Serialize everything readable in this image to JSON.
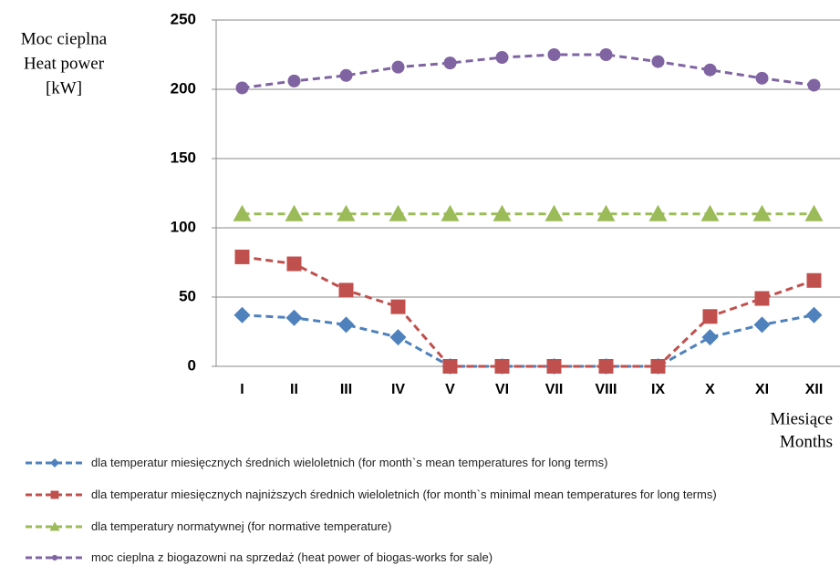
{
  "chart_data": {
    "type": "line",
    "y_label_lines": [
      "Moc cieplna",
      "Heat power",
      "[kW]"
    ],
    "x_label_lines": [
      "Miesiące",
      "Months"
    ],
    "categories": [
      "I",
      "II",
      "III",
      "IV",
      "V",
      "VI",
      "VII",
      "VIII",
      "IX",
      "X",
      "XI",
      "XII"
    ],
    "series": [
      {
        "name": "dla temperatur miesięcznych średnich wieloletnich (for month`s mean temperatures for long terms)",
        "color": "#4f81bd",
        "marker": "diamond",
        "values": [
          37,
          35,
          30,
          21,
          0,
          0,
          0,
          0,
          0,
          21,
          30,
          37
        ]
      },
      {
        "name": "dla temperatur miesięcznych najniższych średnich wieloletnich (for month`s minimal mean temperatures for long terms)",
        "color": "#c0504d",
        "marker": "square",
        "values": [
          79,
          74,
          55,
          43,
          0,
          0,
          0,
          0,
          0,
          36,
          49,
          62
        ]
      },
      {
        "name": "dla temperatury normatywnej (for normative temperature)",
        "color": "#9bbb59",
        "marker": "triangle",
        "values": [
          110,
          110,
          110,
          110,
          110,
          110,
          110,
          110,
          110,
          110,
          110,
          110
        ]
      },
      {
        "name": "moc cieplna z biogazowni na sprzedaż (heat power of biogas-works for sale)",
        "color": "#8064a2",
        "marker": "circle",
        "values": [
          201,
          206,
          210,
          216,
          219,
          223,
          225,
          225,
          220,
          214,
          208,
          203
        ]
      }
    ],
    "ylim": [
      0,
      250
    ],
    "yticks": [
      0,
      50,
      100,
      150,
      200,
      250
    ],
    "grid": true
  }
}
